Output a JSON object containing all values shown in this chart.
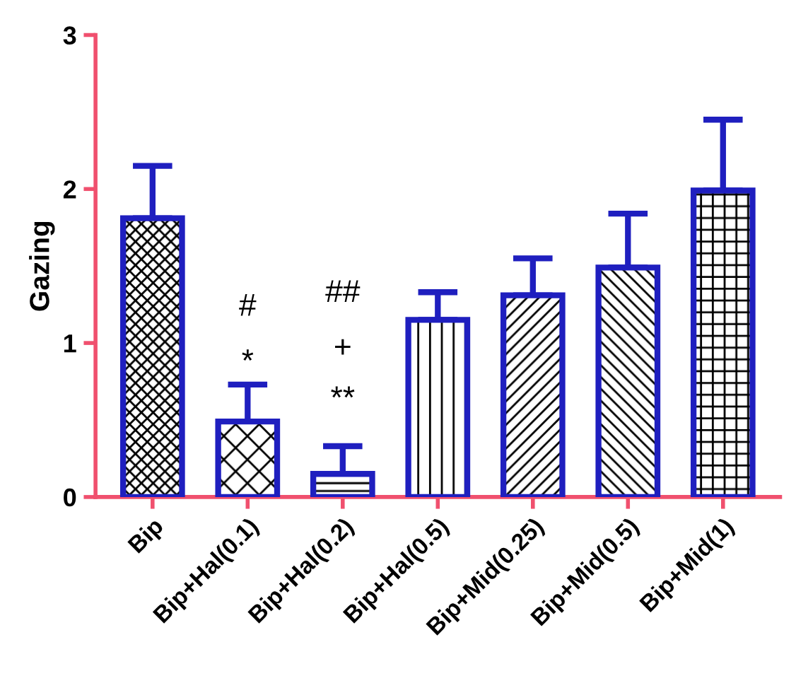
{
  "chart_data": {
    "type": "bar",
    "ylabel": "Gazing",
    "categories": [
      "Bip",
      "Bip+Hal(0.1)",
      "Bip+Hal(0.2)",
      "Bip+Hal(0.5)",
      "Bip+Mid(0.25)",
      "Bip+Mid(0.5)",
      "Bip+Mid(1)"
    ],
    "values": [
      1.81,
      0.49,
      0.15,
      1.15,
      1.31,
      1.49,
      1.99
    ],
    "errors": [
      [
        1.81,
        2.15
      ],
      [
        0.49,
        0.73
      ],
      [
        0.15,
        0.33
      ],
      [
        1.15,
        1.33
      ],
      [
        1.31,
        1.55
      ],
      [
        1.49,
        1.84
      ],
      [
        1.99,
        2.45
      ]
    ],
    "color": "#1f1fbf",
    "ylim": [
      0,
      3
    ],
    "yticks": [
      0,
      1,
      2,
      3
    ],
    "grid": false,
    "annotations": [
      "#",
      "*",
      "##",
      "+",
      "**"
    ]
  }
}
